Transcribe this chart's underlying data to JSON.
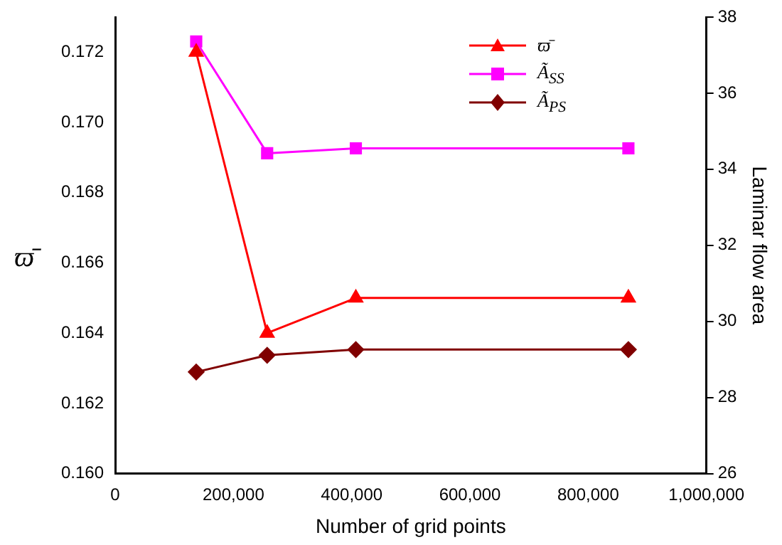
{
  "chart_data": {
    "type": "line",
    "xlabel": "Number of grid points",
    "ylabel": "ϖ̄",
    "y2label": "Laminar flow area",
    "x": [
      137000,
      257000,
      407000,
      868000
    ],
    "series": [
      {
        "name": "ϖ̄",
        "color": "#ff0000",
        "marker": "triangle",
        "values": [
          0.172,
          0.164,
          0.165,
          0.165
        ]
      },
      {
        "name": "Ã$_{SS}$",
        "color": "#ff00ff",
        "marker": "square",
        "axis": "y2",
        "values": [
          37.36,
          34.42,
          34.55,
          34.55
        ]
      },
      {
        "name": "Ã$_{PS}$",
        "color": "#800000",
        "marker": "diamond",
        "axis": "y2",
        "values": [
          28.67,
          29.11,
          29.26,
          29.26
        ]
      }
    ],
    "xlim": [
      0,
      1000000
    ],
    "xticks": [
      {
        "value": 0,
        "label": "0"
      },
      {
        "value": 200000,
        "label": "200,000"
      },
      {
        "value": 400000,
        "label": "400,000"
      },
      {
        "value": 600000,
        "label": "600,000"
      },
      {
        "value": 800000,
        "label": "800,000"
      },
      {
        "value": 1000000,
        "label": "1,000,000"
      }
    ],
    "ylim": [
      0.16,
      0.173
    ],
    "yticks": [
      {
        "value": 0.16,
        "label": "0.160"
      },
      {
        "value": 0.162,
        "label": "0.162"
      },
      {
        "value": 0.164,
        "label": "0.164"
      },
      {
        "value": 0.166,
        "label": "0.166"
      },
      {
        "value": 0.168,
        "label": "0.168"
      },
      {
        "value": 0.17,
        "label": "0.170"
      },
      {
        "value": 0.172,
        "label": "0.172"
      }
    ],
    "y2lim": [
      26,
      38
    ],
    "y2ticks": [
      26,
      28,
      30,
      32,
      34,
      36,
      38
    ],
    "legend": "top right",
    "grid": false,
    "line_style": "solid"
  }
}
